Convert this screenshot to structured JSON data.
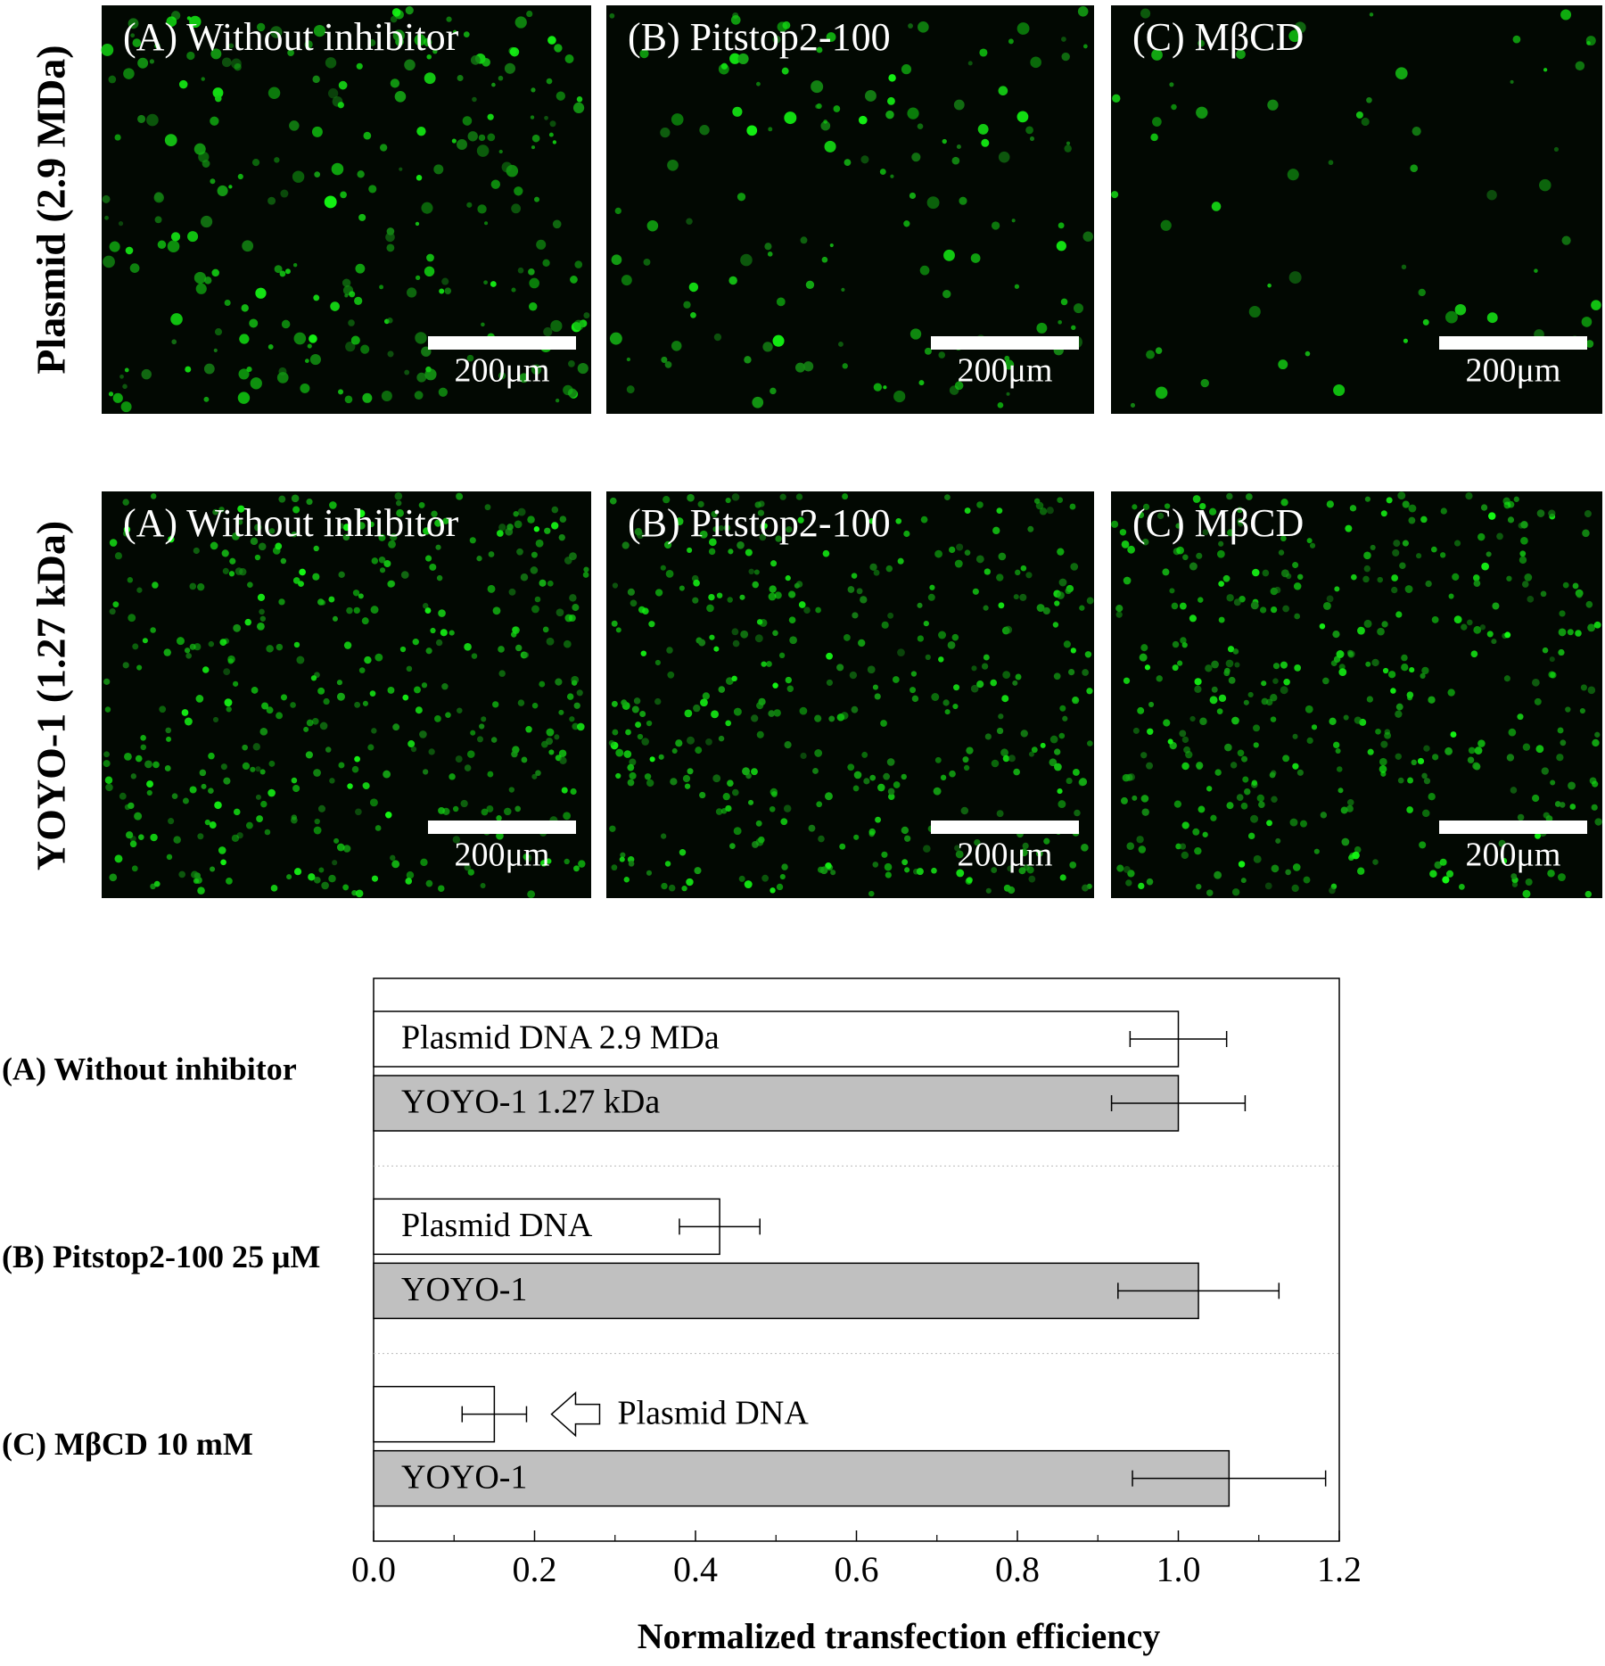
{
  "panels": {
    "rows": [
      {
        "label": "Plasmid (2.9 MDa)",
        "titles": [
          "(A) Without inhibitor",
          "(B) Pitstop2-100",
          "(C) MβCD"
        ],
        "scale_labels": [
          "200μm",
          "200μm",
          "200μm"
        ]
      },
      {
        "label": "YOYO-1 (1.27 kDa)",
        "titles": [
          "(A) Without inhibitor",
          "(B) Pitstop2-100",
          "(C) MβCD"
        ],
        "scale_labels": [
          "200μm",
          "200μm",
          "200μm"
        ]
      }
    ]
  },
  "chart_data": {
    "type": "hbar",
    "categories": [
      "(A) Without inhibitor",
      "(B) Pitstop2-100 25 μM",
      "(C) MβCD 10 mM"
    ],
    "series": [
      {
        "color": "#ffffff",
        "values": [
          1.0,
          0.43,
          0.15
        ],
        "errors": [
          0.06,
          0.05,
          0.04
        ],
        "labels": [
          "Plasmid DNA 2.9 MDa",
          "Plasmid DNA",
          "Plasmid DNA"
        ]
      },
      {
        "color": "#c0c0c0",
        "values": [
          1.0,
          1.025,
          1.063
        ],
        "errors": [
          0.083,
          0.1,
          0.12
        ],
        "labels": [
          "YOYO-1 1.27 kDa",
          "YOYO-1",
          "YOYO-1"
        ]
      }
    ],
    "xlim": [
      0,
      1.2
    ],
    "xticks": [
      {
        "value": 0,
        "label": "0.0"
      },
      {
        "value": 0.2,
        "label": "0.2"
      },
      {
        "value": 0.4,
        "label": "0.4"
      },
      {
        "value": 0.6,
        "label": "0.6"
      },
      {
        "value": 0.8,
        "label": "0.8"
      },
      {
        "value": 1.0,
        "label": "1.0"
      },
      {
        "value": 1.2,
        "label": "1.2"
      }
    ],
    "xlabel": "Normalized transfection efficiency"
  }
}
